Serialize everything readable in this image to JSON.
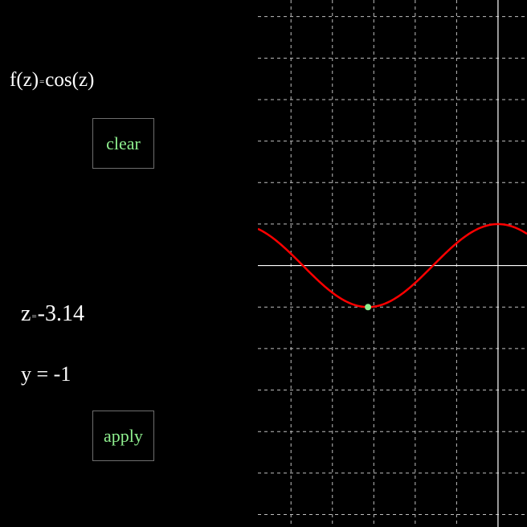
{
  "controls": {
    "function": {
      "lhs": "f(z)",
      "eq": "=",
      "rhs": "cos(z)"
    },
    "clear_label": "clear",
    "z": {
      "name": "z",
      "eq": "=",
      "value": "-3.14"
    },
    "y": {
      "text": "y = -1"
    },
    "apply_label": "apply"
  },
  "colors": {
    "background": "#000000",
    "grid": "#bfbfbf",
    "axis": "#ffffff",
    "curve": "#ff0000",
    "marker": "#8ff08f",
    "button_text": "#8ff08f",
    "button_border": "#6e6e6e"
  },
  "chart_data": {
    "type": "line",
    "function": "cos(z)",
    "grid": true,
    "series": [
      {
        "x": [
          -5.5,
          -5,
          -4.5,
          -4,
          -3.5,
          -3.14,
          -2.5,
          -2,
          -1.5,
          -1,
          -0.5,
          0,
          0.5
        ],
        "y": [
          0.71,
          0.28,
          -0.21,
          -0.65,
          -0.94,
          -1,
          -0.8,
          -0.42,
          0.07,
          0.54,
          0.88,
          1,
          0.88
        ]
      }
    ],
    "marker": {
      "x": -3.14,
      "y": -1
    },
    "xlim": [
      -5.8,
      0.7
    ],
    "ylim": [
      -6.3,
      6.4
    ]
  }
}
